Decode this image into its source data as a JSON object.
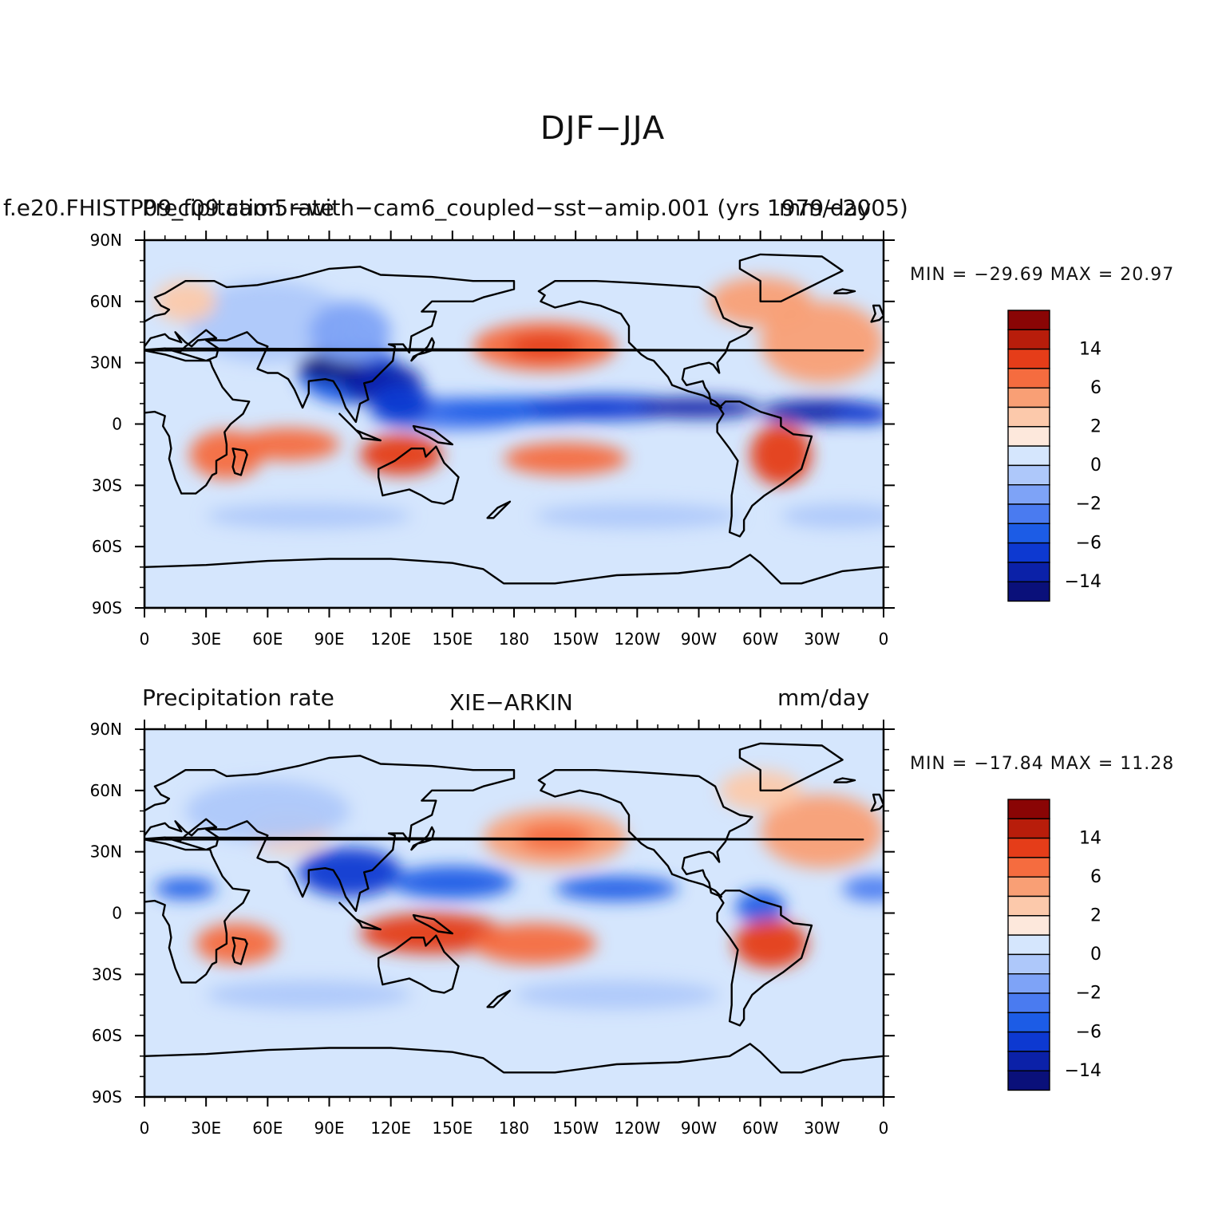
{
  "page_title": "DJF−JJA",
  "colorbar_colors": [
    "#0a107a",
    "#0b21a8",
    "#0d39d1",
    "#1c5ce6",
    "#4a7bf0",
    "#7ea3f7",
    "#aec8fa",
    "#d5e6fd",
    "#fde8dc",
    "#fcc9ab",
    "#f99f75",
    "#f56c3f",
    "#e53d19",
    "#b81d0b",
    "#8a0505"
  ],
  "colorbar_labels": [
    "−14",
    "−6",
    "−2",
    "0",
    "2",
    "6",
    "14"
  ],
  "x_ticks": [
    "0",
    "30E",
    "60E",
    "90E",
    "120E",
    "150E",
    "180",
    "150W",
    "120W",
    "90W",
    "60W",
    "30W",
    "0"
  ],
  "y_ticks": [
    "90N",
    "60N",
    "30N",
    "0",
    "30S",
    "60S",
    "90S"
  ],
  "panels": [
    {
      "left_label": "f.e20.FHISTP09_f09.cam5−with−cam6_coupled−sst−amip.001 (yrs 1979−2005)",
      "overlay_left": "Precipitation rate",
      "overlay_right": "mm/day",
      "center_label": "",
      "stats": "MIN = −29.69  MAX =  20.97"
    },
    {
      "left_label": "Precipitation rate",
      "overlay_left": "",
      "overlay_right": "mm/day",
      "center_label": "XIE−ARKIN",
      "stats": "MIN = −17.84  MAX =  11.28"
    }
  ]
}
